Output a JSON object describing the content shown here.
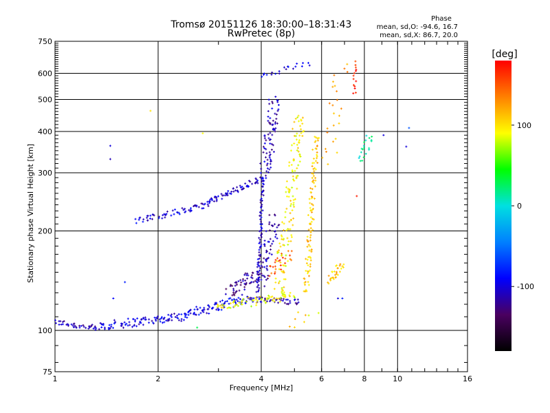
{
  "chart_data": {
    "type": "scatter",
    "title": "Tromsø 20151126 18:30:00–18:31:43",
    "subtitle": "RwPretec (8p)",
    "xlabel": "Frequency [MHz]",
    "ylabel": "Stationary phase Virtual Height [km]",
    "x_scale": "log",
    "y_scale": "log",
    "xlim": [
      1,
      16
    ],
    "ylim": [
      75,
      750
    ],
    "x_ticks": [
      1,
      2,
      4,
      6,
      8,
      10,
      16
    ],
    "y_ticks": [
      75,
      100,
      200,
      300,
      400,
      500,
      600,
      750
    ],
    "grid": true,
    "stats": {
      "heading": "Phase",
      "line1": "mean, sd,O: -94.6, 16.7",
      "line2": "mean, sd,X:  86.7, 20.0"
    },
    "colorbar": {
      "label": "[deg]",
      "range": [
        -180,
        180
      ],
      "ticks": [
        100,
        0,
        -100
      ],
      "colors": [
        "#000000",
        "#4a0060",
        "#0000ff",
        "#0080ff",
        "#00e0e0",
        "#00ff00",
        "#ffff00",
        "#ff8000",
        "#ff0000"
      ]
    },
    "traces": [
      {
        "name": "",
        "x0": 1.0,
        "x1": 1.35,
        "y0": 106,
        "y1": 101,
        "n": 40,
        "jitter": 0.02,
        "phase": -110
      },
      {
        "name": "",
        "x0": 1.35,
        "x1": 2.3,
        "y0": 103,
        "y1": 110,
        "n": 90,
        "jitter": 0.03,
        "phase": -100
      },
      {
        "name": "",
        "x0": 2.3,
        "x1": 3.6,
        "y0": 110,
        "y1": 125,
        "n": 90,
        "jitter": 0.03,
        "phase": -95
      },
      {
        "name": "",
        "x0": 3.6,
        "x1": 5.2,
        "y0": 125,
        "y1": 122,
        "n": 50,
        "jitter": 0.02,
        "phase": -110
      },
      {
        "name": "",
        "x0": 3.0,
        "x1": 5.0,
        "y0": 118,
        "y1": 128,
        "n": 70,
        "jitter": 0.03,
        "phase": 90
      },
      {
        "name": "",
        "x0": 3.2,
        "x1": 4.0,
        "y0": 130,
        "y1": 150,
        "n": 60,
        "jitter": 0.05,
        "phase": -120
      },
      {
        "name": "",
        "x0": 1.72,
        "x1": 2.6,
        "y0": 215,
        "y1": 235,
        "n": 50,
        "jitter": 0.02,
        "phase": -100
      },
      {
        "name": "",
        "x0": 2.6,
        "x1": 4.05,
        "y0": 235,
        "y1": 290,
        "n": 80,
        "jitter": 0.02,
        "phase": -105
      },
      {
        "name": "",
        "x0": 3.9,
        "x1": 4.05,
        "y0": 130,
        "y1": 290,
        "n": 80,
        "jitter": 0.01,
        "phase": -105
      },
      {
        "name": "",
        "x0": 4.1,
        "x1": 4.4,
        "y0": 300,
        "y1": 500,
        "n": 80,
        "jitter": 0.04,
        "phase": -110
      },
      {
        "name": "",
        "x0": 4.0,
        "x1": 4.4,
        "y0": 140,
        "y1": 220,
        "n": 60,
        "jitter": 0.04,
        "phase": -115
      },
      {
        "name": "",
        "x0": 4.5,
        "x1": 5.2,
        "y0": 130,
        "y1": 450,
        "n": 140,
        "jitter": 0.04,
        "phase": 95
      },
      {
        "name": "",
        "x0": 5.4,
        "x1": 5.8,
        "y0": 130,
        "y1": 390,
        "n": 110,
        "jitter": 0.02,
        "phase": 110
      },
      {
        "name": "",
        "x0": 6.3,
        "x1": 6.9,
        "y0": 140,
        "y1": 160,
        "n": 30,
        "jitter": 0.02,
        "phase": 110
      },
      {
        "name": "",
        "x0": 4.2,
        "x1": 4.9,
        "y0": 150,
        "y1": 170,
        "n": 25,
        "jitter": 0.04,
        "phase": 150
      },
      {
        "name": "",
        "x0": 4.0,
        "x1": 5.5,
        "y0": 595,
        "y1": 640,
        "n": 20,
        "jitter": 0.02,
        "phase": -100
      },
      {
        "name": "",
        "x0": 6.3,
        "x1": 6.9,
        "y0": 320,
        "y1": 640,
        "n": 25,
        "jitter": 0.05,
        "phase": 120
      },
      {
        "name": "",
        "x0": 7.5,
        "x1": 7.5,
        "y0": 520,
        "y1": 650,
        "n": 14,
        "jitter": 0.01,
        "phase": 170
      },
      {
        "name": "",
        "x0": 7.8,
        "x1": 8.3,
        "y0": 330,
        "y1": 390,
        "n": 20,
        "jitter": 0.03,
        "phase": 10
      },
      {
        "name": "",
        "x0": 4.9,
        "x1": 5.7,
        "y0": 100,
        "y1": 115,
        "n": 8,
        "jitter": 0.05,
        "phase": 100
      }
    ],
    "isolated_points": [
      {
        "x": 1.45,
        "y": 362,
        "phase": -100
      },
      {
        "x": 1.45,
        "y": 330,
        "phase": -110
      },
      {
        "x": 1.48,
        "y": 125,
        "phase": -90
      },
      {
        "x": 1.6,
        "y": 140,
        "phase": -80
      },
      {
        "x": 1.9,
        "y": 462,
        "phase": 100
      },
      {
        "x": 2.7,
        "y": 395,
        "phase": 90
      },
      {
        "x": 2.6,
        "y": 102,
        "phase": 30
      },
      {
        "x": 7.6,
        "y": 255,
        "phase": 170
      },
      {
        "x": 9.1,
        "y": 390,
        "phase": -100
      },
      {
        "x": 10.6,
        "y": 360,
        "phase": -100
      },
      {
        "x": 10.8,
        "y": 410,
        "phase": -60
      },
      {
        "x": 6.9,
        "y": 125,
        "phase": -80
      },
      {
        "x": 6.7,
        "y": 125,
        "phase": -100
      }
    ]
  }
}
